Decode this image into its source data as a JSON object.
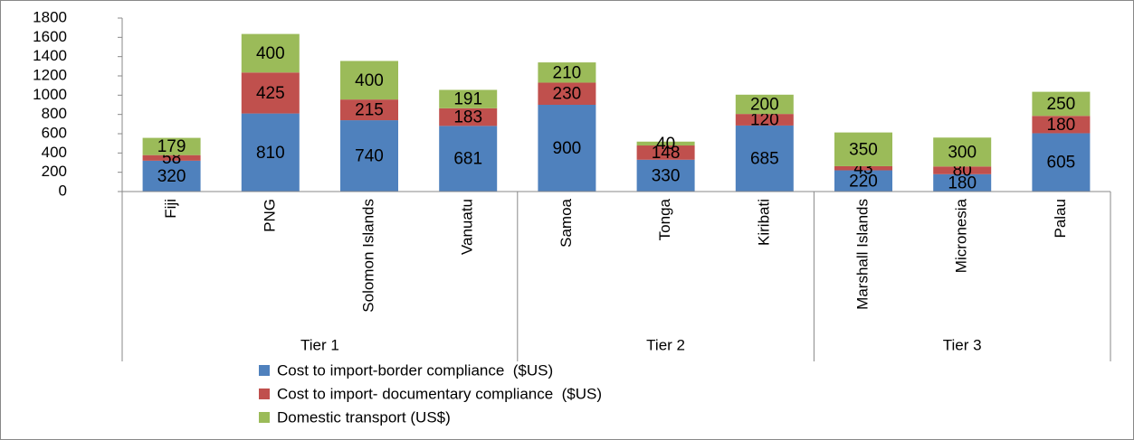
{
  "chart_data": {
    "type": "stacked_bar",
    "categories": [
      "Fiji",
      "PNG",
      "Solomon Islands",
      "Vanuatu",
      "Samoa",
      "Tonga",
      "Kiribati",
      "Marshall Islands",
      "Micronesia",
      "Palau"
    ],
    "groups": [
      {
        "label": "Tier 1",
        "count": 4
      },
      {
        "label": "Tier 2",
        "count": 3
      },
      {
        "label": "Tier 3",
        "count": 3
      }
    ],
    "series": [
      {
        "name": "Cost to import-border compliance  ($US)",
        "color": "#4f81bd",
        "values": [
          320,
          810,
          740,
          681,
          900,
          330,
          685,
          220,
          180,
          605
        ]
      },
      {
        "name": "Cost to import- documentary compliance  ($US)",
        "color": "#c0504d",
        "values": [
          58,
          425,
          215,
          183,
          230,
          148,
          120,
          43,
          80,
          180
        ]
      },
      {
        "name": "Domestic transport (US$)",
        "color": "#9bbb59",
        "values": [
          179,
          400,
          400,
          191,
          210,
          40,
          200,
          350,
          300,
          250
        ]
      }
    ],
    "ylim": [
      0,
      1800
    ],
    "yticks": [
      0,
      200,
      400,
      600,
      800,
      1000,
      1200,
      1400,
      1600,
      1800
    ]
  }
}
